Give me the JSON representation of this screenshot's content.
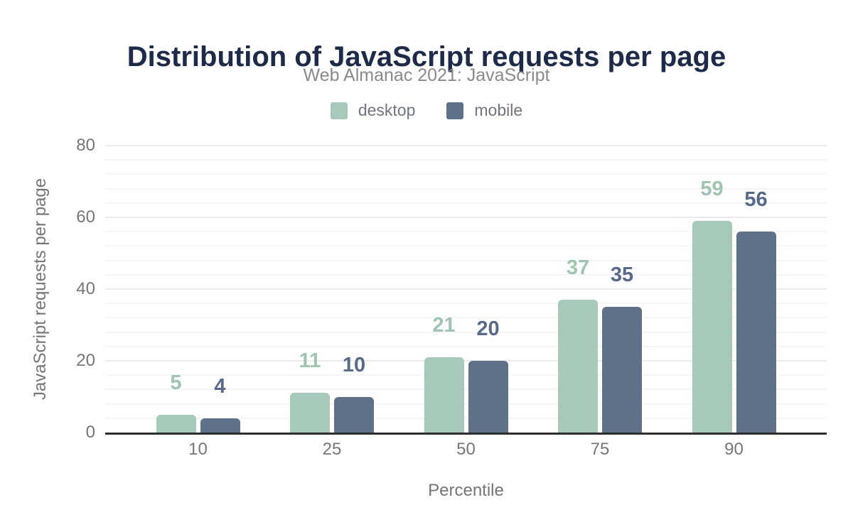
{
  "header": {
    "title": "Distribution of JavaScript requests per page",
    "subtitle": "Web Almanac 2021: JavaScript"
  },
  "chart_data": {
    "type": "bar",
    "title": "Distribution of JavaScript requests per page",
    "subtitle": "Web Almanac 2021: JavaScript",
    "categories": [
      "10",
      "25",
      "50",
      "75",
      "90"
    ],
    "series": [
      {
        "name": "desktop",
        "color": "#a7c9b9",
        "label_color": "#a0c4b2",
        "values": [
          5,
          11,
          21,
          37,
          59
        ]
      },
      {
        "name": "mobile",
        "color": "#5f7089",
        "label_color": "#586a87",
        "values": [
          4,
          10,
          20,
          35,
          56
        ]
      }
    ],
    "xlabel": "Percentile",
    "ylabel": "JavaScript requests per page",
    "ylim": [
      0,
      80
    ],
    "yticks": [
      0,
      20,
      40,
      60,
      80
    ],
    "minor_grid_unit": 4,
    "grid": true,
    "legend_position": "top",
    "axis_line_color": "#2e2e2e",
    "tick_label_color": "#757575"
  }
}
